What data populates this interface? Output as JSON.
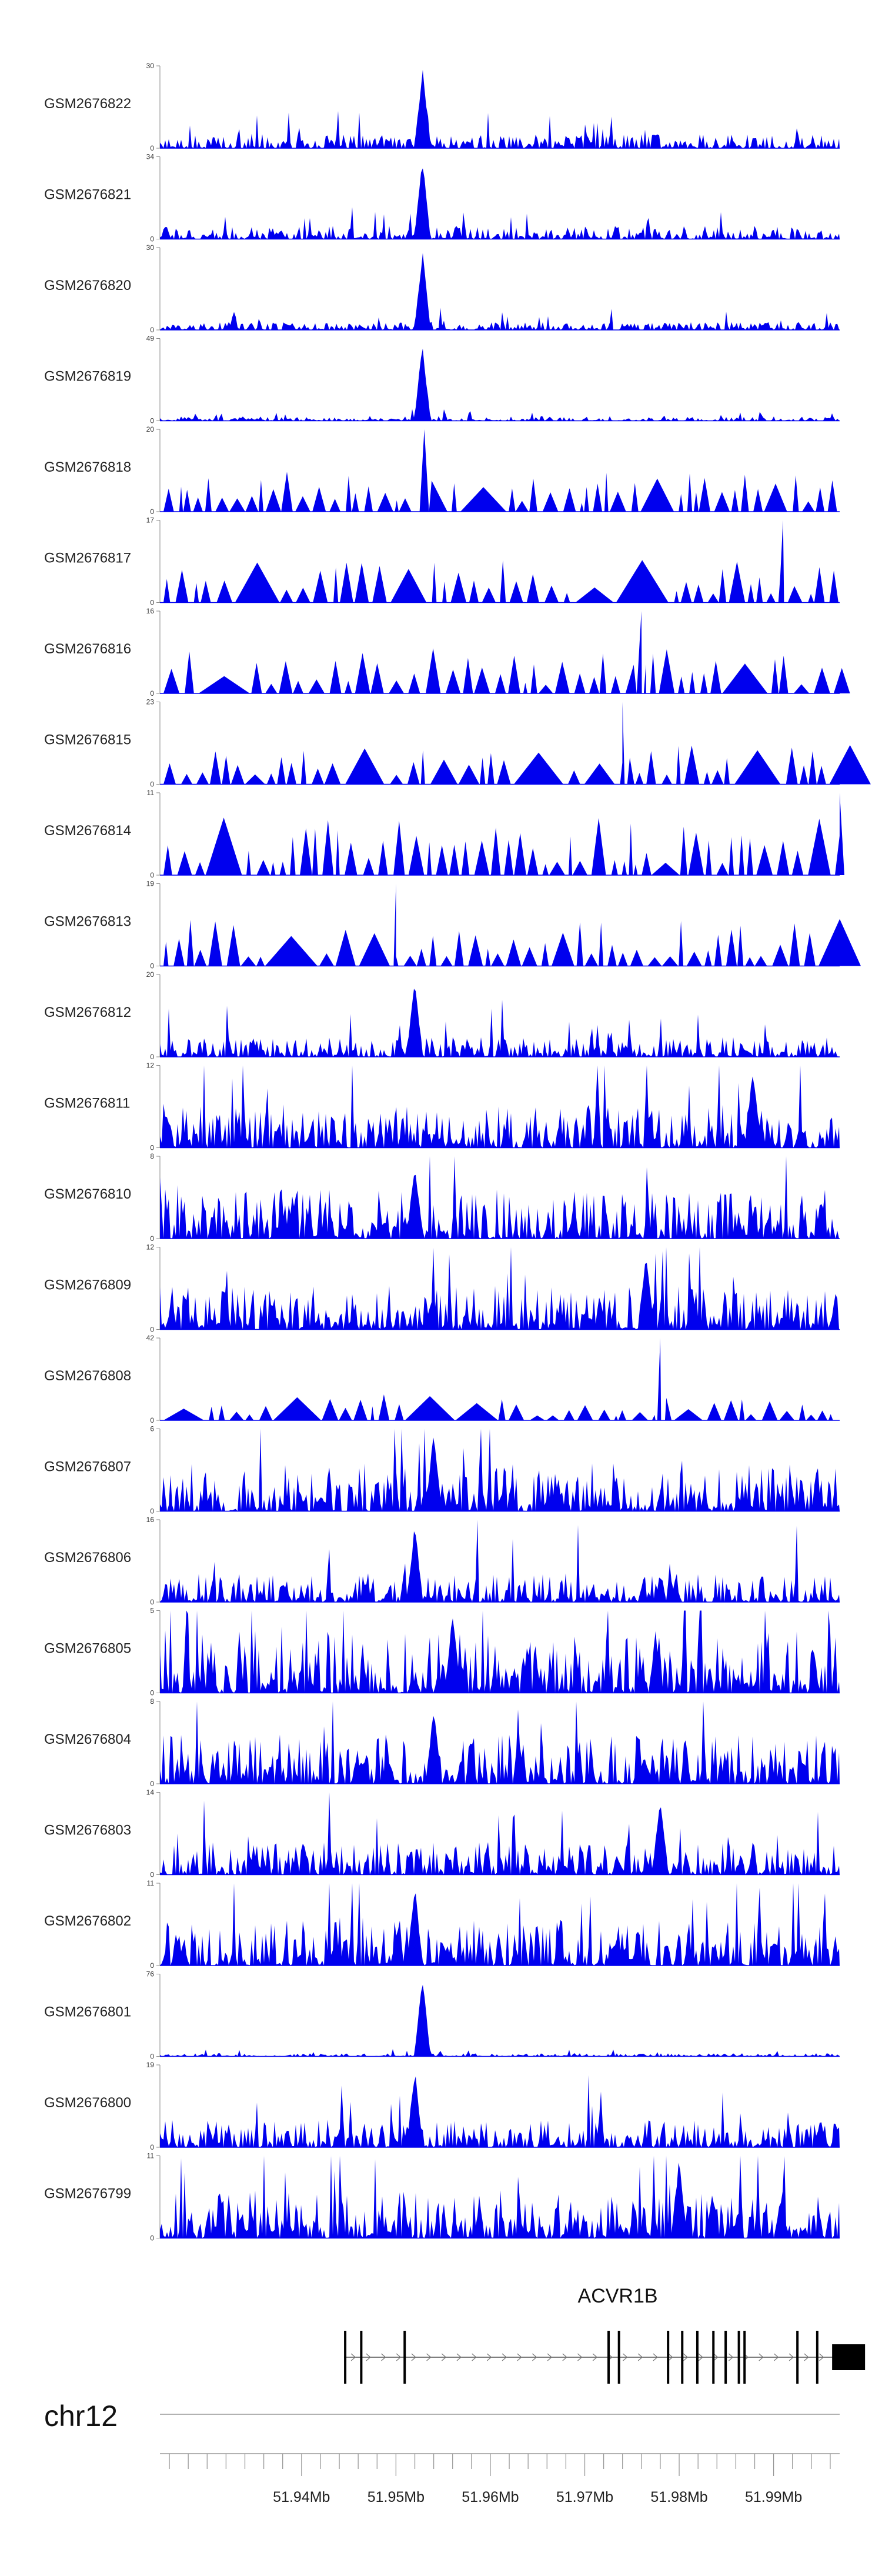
{
  "chart_data": {
    "type": "area",
    "title": "",
    "chromosome": "chr12",
    "x_range_mb": [
      51.925,
      51.997
    ],
    "genome_ticks": [
      "51.94Mb",
      "51.95Mb",
      "51.96Mb",
      "51.97Mb",
      "51.98Mb",
      "51.99Mb"
    ],
    "genome_tick_values": [
      51.94,
      51.95,
      51.96,
      51.97,
      51.98,
      51.99
    ],
    "gene": {
      "name": "ACVR1B",
      "start_mb": 51.9445,
      "end_mb": 51.9975,
      "strand": "+",
      "exons_mb": [
        51.9445,
        51.9462,
        51.9508,
        51.9724,
        51.9735,
        51.9787,
        51.9802,
        51.9818,
        51.9835,
        51.9848,
        51.9862,
        51.9868,
        51.9924,
        51.9945,
        51.9962
      ]
    },
    "series": [
      {
        "name": "GSM2676822",
        "ymax": 30,
        "peak_mb": 51.9528,
        "peak": 30,
        "baseline": 3.2,
        "style": "dense",
        "seed": 22
      },
      {
        "name": "GSM2676821",
        "ymax": 34,
        "peak_mb": 51.9528,
        "peak": 34,
        "baseline": 3.4,
        "style": "dense",
        "seed": 21
      },
      {
        "name": "GSM2676820",
        "ymax": 30,
        "peak_mb": 51.9528,
        "peak": 30,
        "baseline": 1.8,
        "style": "dense",
        "seed": 20
      },
      {
        "name": "GSM2676819",
        "ymax": 49,
        "peak_mb": 51.9528,
        "peak": 49,
        "baseline": 1.6,
        "style": "dense",
        "seed": 19
      },
      {
        "name": "GSM2676818",
        "ymax": 20,
        "peak_mb": 51.953,
        "peak": 20,
        "baseline": 4.5,
        "style": "sparse",
        "seed": 18
      },
      {
        "name": "GSM2676817",
        "ymax": 17,
        "peak_mb": 51.991,
        "peak": 17,
        "baseline": 4.0,
        "style": "sparse",
        "seed": 17
      },
      {
        "name": "GSM2676816",
        "ymax": 16,
        "peak_mb": 51.976,
        "peak": 16,
        "baseline": 4.0,
        "style": "sparse",
        "seed": 16
      },
      {
        "name": "GSM2676815",
        "ymax": 23,
        "peak_mb": 51.974,
        "peak": 23,
        "baseline": 5.0,
        "style": "sparse",
        "seed": 15
      },
      {
        "name": "GSM2676814",
        "ymax": 11,
        "peak_mb": 51.997,
        "peak": 11,
        "baseline": 3.5,
        "style": "sparse",
        "seed": 14
      },
      {
        "name": "GSM2676813",
        "ymax": 19,
        "peak_mb": 51.95,
        "peak": 19,
        "baseline": 5.0,
        "style": "sparse",
        "seed": 13
      },
      {
        "name": "GSM2676812",
        "ymax": 20,
        "peak_mb": 51.952,
        "peak": 20,
        "baseline": 3.0,
        "style": "dense",
        "seed": 12
      },
      {
        "name": "GSM2676811",
        "ymax": 12,
        "peak_mb": 51.9878,
        "peak": 12,
        "baseline": 4.0,
        "style": "dense",
        "seed": 11
      },
      {
        "name": "GSM2676810",
        "ymax": 8,
        "peak_mb": 51.952,
        "peak": 8,
        "baseline": 3.0,
        "style": "dense",
        "seed": 10
      },
      {
        "name": "GSM2676809",
        "ymax": 12,
        "peak_mb": 51.9765,
        "peak": 12,
        "baseline": 4.0,
        "style": "dense",
        "seed": 9
      },
      {
        "name": "GSM2676808",
        "ymax": 42,
        "peak_mb": 51.978,
        "peak": 42,
        "baseline": 6.0,
        "style": "sparse",
        "seed": 8
      },
      {
        "name": "GSM2676807",
        "ymax": 6,
        "peak_mb": 51.954,
        "peak": 6,
        "baseline": 2.2,
        "style": "dense",
        "seed": 7
      },
      {
        "name": "GSM2676806",
        "ymax": 16,
        "peak_mb": 51.952,
        "peak": 16,
        "baseline": 3.5,
        "style": "dense",
        "seed": 6
      },
      {
        "name": "GSM2676805",
        "ymax": 5,
        "peak_mb": 51.956,
        "peak": 5,
        "baseline": 2.4,
        "style": "dense",
        "seed": 5
      },
      {
        "name": "GSM2676804",
        "ymax": 8,
        "peak_mb": 51.954,
        "peak": 8,
        "baseline": 3.0,
        "style": "dense",
        "seed": 4
      },
      {
        "name": "GSM2676803",
        "ymax": 14,
        "peak_mb": 51.978,
        "peak": 14,
        "baseline": 3.5,
        "style": "dense",
        "seed": 3
      },
      {
        "name": "GSM2676802",
        "ymax": 11,
        "peak_mb": 51.952,
        "peak": 11,
        "baseline": 4.0,
        "style": "dense",
        "seed": 2
      },
      {
        "name": "GSM2676801",
        "ymax": 76,
        "peak_mb": 51.9528,
        "peak": 76,
        "baseline": 1.8,
        "style": "dense",
        "seed": 1
      },
      {
        "name": "GSM2676800",
        "ymax": 19,
        "peak_mb": 51.952,
        "peak": 19,
        "baseline": 4.0,
        "style": "dense",
        "seed": 100
      },
      {
        "name": "GSM2676799",
        "ymax": 11,
        "peak_mb": 51.98,
        "peak": 11,
        "baseline": 4.0,
        "style": "dense",
        "seed": 99
      }
    ],
    "colors": {
      "signal": "#0000ee",
      "axis": "#888888",
      "gene": "#000000"
    }
  }
}
